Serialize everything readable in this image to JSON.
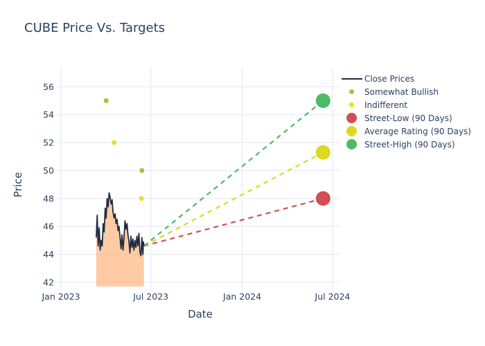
{
  "title": "CUBE Price Vs. Targets",
  "colors": {
    "text": "#2a3f5f",
    "grid": "#e9ecf4",
    "background": "#ffffff",
    "close_line": "#1f2c40",
    "close_fill": "rgba(255,161,90,0.55)",
    "somewhat_bullish": "#a1c63a",
    "indifferent": "#e4df26",
    "street_low": "#d04f54",
    "average_rating": "#ddd820",
    "street_high": "#4cba66"
  },
  "chart_data": {
    "type": "line",
    "title": "CUBE Price Vs. Targets",
    "xlabel": "Date",
    "ylabel": "Price",
    "xlim": [
      "2023-01-01",
      "2024-07-15"
    ],
    "ylim": [
      41.7,
      57.4
    ],
    "yticks": [
      42,
      44,
      46,
      48,
      50,
      52,
      54,
      56
    ],
    "xticks": [
      {
        "date": "2023-01-01",
        "label": "Jan 2023"
      },
      {
        "date": "2023-07-01",
        "label": "Jul 2023"
      },
      {
        "date": "2024-01-01",
        "label": "Jan 2024"
      },
      {
        "date": "2024-07-01",
        "label": "Jul 2024"
      }
    ],
    "grid": true,
    "legend_position": "right",
    "projection_from": {
      "date": "2023-06-17",
      "value": 44.6
    },
    "series": [
      {
        "name": "Close Prices",
        "kind": "line",
        "color": "#1f2c40",
        "fill": "rgba(255,161,90,0.55)",
        "dates": [
          "2023-03-13",
          "2023-03-15",
          "2023-03-17",
          "2023-03-19",
          "2023-03-21",
          "2023-03-23",
          "2023-03-25",
          "2023-03-27",
          "2023-03-29",
          "2023-03-31",
          "2023-04-02",
          "2023-04-04",
          "2023-04-06",
          "2023-04-08",
          "2023-04-10",
          "2023-04-12",
          "2023-04-14",
          "2023-04-16",
          "2023-04-18",
          "2023-04-20",
          "2023-04-22",
          "2023-04-24",
          "2023-04-26",
          "2023-04-28",
          "2023-04-30",
          "2023-05-02",
          "2023-05-04",
          "2023-05-06",
          "2023-05-08",
          "2023-05-10",
          "2023-05-12",
          "2023-05-14",
          "2023-05-16",
          "2023-05-18",
          "2023-05-20",
          "2023-05-22",
          "2023-05-24",
          "2023-05-26",
          "2023-05-28",
          "2023-05-30",
          "2023-06-01",
          "2023-06-03",
          "2023-06-05",
          "2023-06-07",
          "2023-06-09",
          "2023-06-11",
          "2023-06-13",
          "2023-06-15",
          "2023-06-16",
          "2023-06-17"
        ],
        "values": [
          45.2,
          46.8,
          44.6,
          45.9,
          44.3,
          45.0,
          44.6,
          46.2,
          45.6,
          47.3,
          46.6,
          48.0,
          47.4,
          48.4,
          48.1,
          47.6,
          47.9,
          47.0,
          46.6,
          46.9,
          46.2,
          46.5,
          45.7,
          46.0,
          45.2,
          44.4,
          45.4,
          44.3,
          45.2,
          46.4,
          45.8,
          46.2,
          45.4,
          44.9,
          44.1,
          45.3,
          44.5,
          45.1,
          44.3,
          45.0,
          44.5,
          45.3,
          44.6,
          45.5,
          44.2,
          43.9,
          45.2,
          44.0,
          44.9,
          44.6
        ]
      },
      {
        "name": "Somewhat Bullish",
        "kind": "scatter",
        "color": "#a1c63a",
        "marker_size": 7,
        "points": [
          {
            "date": "2023-04-02",
            "value": 55
          },
          {
            "date": "2023-06-13",
            "value": 50
          }
        ]
      },
      {
        "name": "Indifferent",
        "kind": "scatter",
        "color": "#e4df26",
        "marker_size": 7,
        "points": [
          {
            "date": "2023-04-18",
            "value": 52
          },
          {
            "date": "2023-06-12",
            "value": 48
          }
        ]
      },
      {
        "name": "Street-Low (90 Days)",
        "kind": "target",
        "color": "#d04f54",
        "marker_size": 21,
        "date": "2024-06-12",
        "value": 48
      },
      {
        "name": "Average Rating (90 Days)",
        "kind": "target",
        "color": "#ddd820",
        "marker_size": 21,
        "date": "2024-06-12",
        "value": 51.3
      },
      {
        "name": "Street-High (90 Days)",
        "kind": "target",
        "color": "#4cba66",
        "marker_size": 21,
        "date": "2024-06-12",
        "value": 55
      }
    ]
  }
}
